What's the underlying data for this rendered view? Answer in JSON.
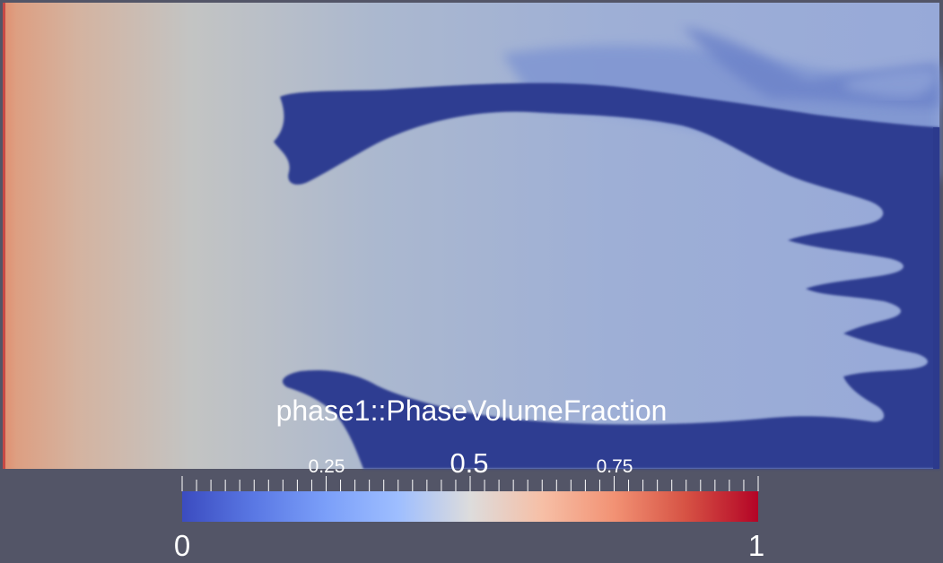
{
  "scalar_bar": {
    "title": "phase1::PhaseVolumeFraction",
    "range_min_label": "0",
    "range_max_label": "1",
    "tick_labels": [
      "0.25",
      "0.5",
      "0.75"
    ]
  },
  "colors": {
    "background": "#535567",
    "low": "#3b4cc0",
    "mid": "#dddddd",
    "high": "#b40426",
    "field_dark_blue": "#2e3d91"
  },
  "colormap": "Cool to Warm"
}
